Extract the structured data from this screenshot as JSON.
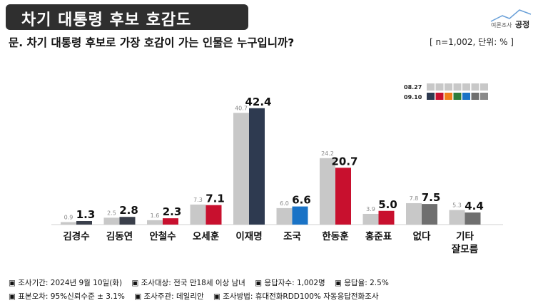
{
  "header": {
    "title": "차기 대통령 후보 호감도",
    "brand": "여론조사공정",
    "brand_small": "여론조사",
    "brand_big": "공정",
    "question": "문. 차기 대통령 후보로 가장 호감이 가는 인물은 누구입니까?",
    "unit_note": "[ n=1,002, 단위: % ]"
  },
  "chart_data": {
    "type": "bar",
    "categories": [
      "김경수",
      "김동연",
      "안철수",
      "오세훈",
      "이재명",
      "조국",
      "한동훈",
      "홍준표",
      "없다",
      "기타\n잘모름"
    ],
    "series": [
      {
        "name": "08.27",
        "values": [
          0.9,
          2.5,
          1.6,
          7.3,
          40.7,
          6.0,
          24.2,
          3.9,
          7.8,
          5.3
        ]
      },
      {
        "name": "09.10",
        "values": [
          1.3,
          2.8,
          2.3,
          7.1,
          42.4,
          6.6,
          20.7,
          5.0,
          7.5,
          4.4
        ]
      }
    ],
    "colors_0910": [
      "#3a3f4b",
      "#3a3f4b",
      "#c8102e",
      "#c8102e",
      "#2e3a50",
      "#1a73c6",
      "#c8102e",
      "#c8102e",
      "#6f6f6f",
      "#6f6f6f"
    ],
    "color_0827": "#c8c8c8",
    "legend_swatches_0910": [
      "#2e3a50",
      "#c8102e",
      "#f07f1a",
      "#2e7d3a",
      "#1a73c6",
      "#6f6f6f",
      "#8a8a8a"
    ],
    "legend_placement": "top-right",
    "grid": false
  },
  "footer": {
    "items": [
      "▣ 조사기간: 2024년 9월 10일(화)",
      "▣ 조사대상: 전국 만18세 이상 남녀",
      "▣ 응답자수: 1,002명",
      "▣ 응답율: 2.5%"
    ],
    "items2": [
      "▣ 표본오차: 95%신뢰수준 ± 3.1%",
      "▣ 조사주관: 데일리안",
      "▣ 조사방법: 휴대전화RDD100% 자동응답전화조사"
    ]
  }
}
